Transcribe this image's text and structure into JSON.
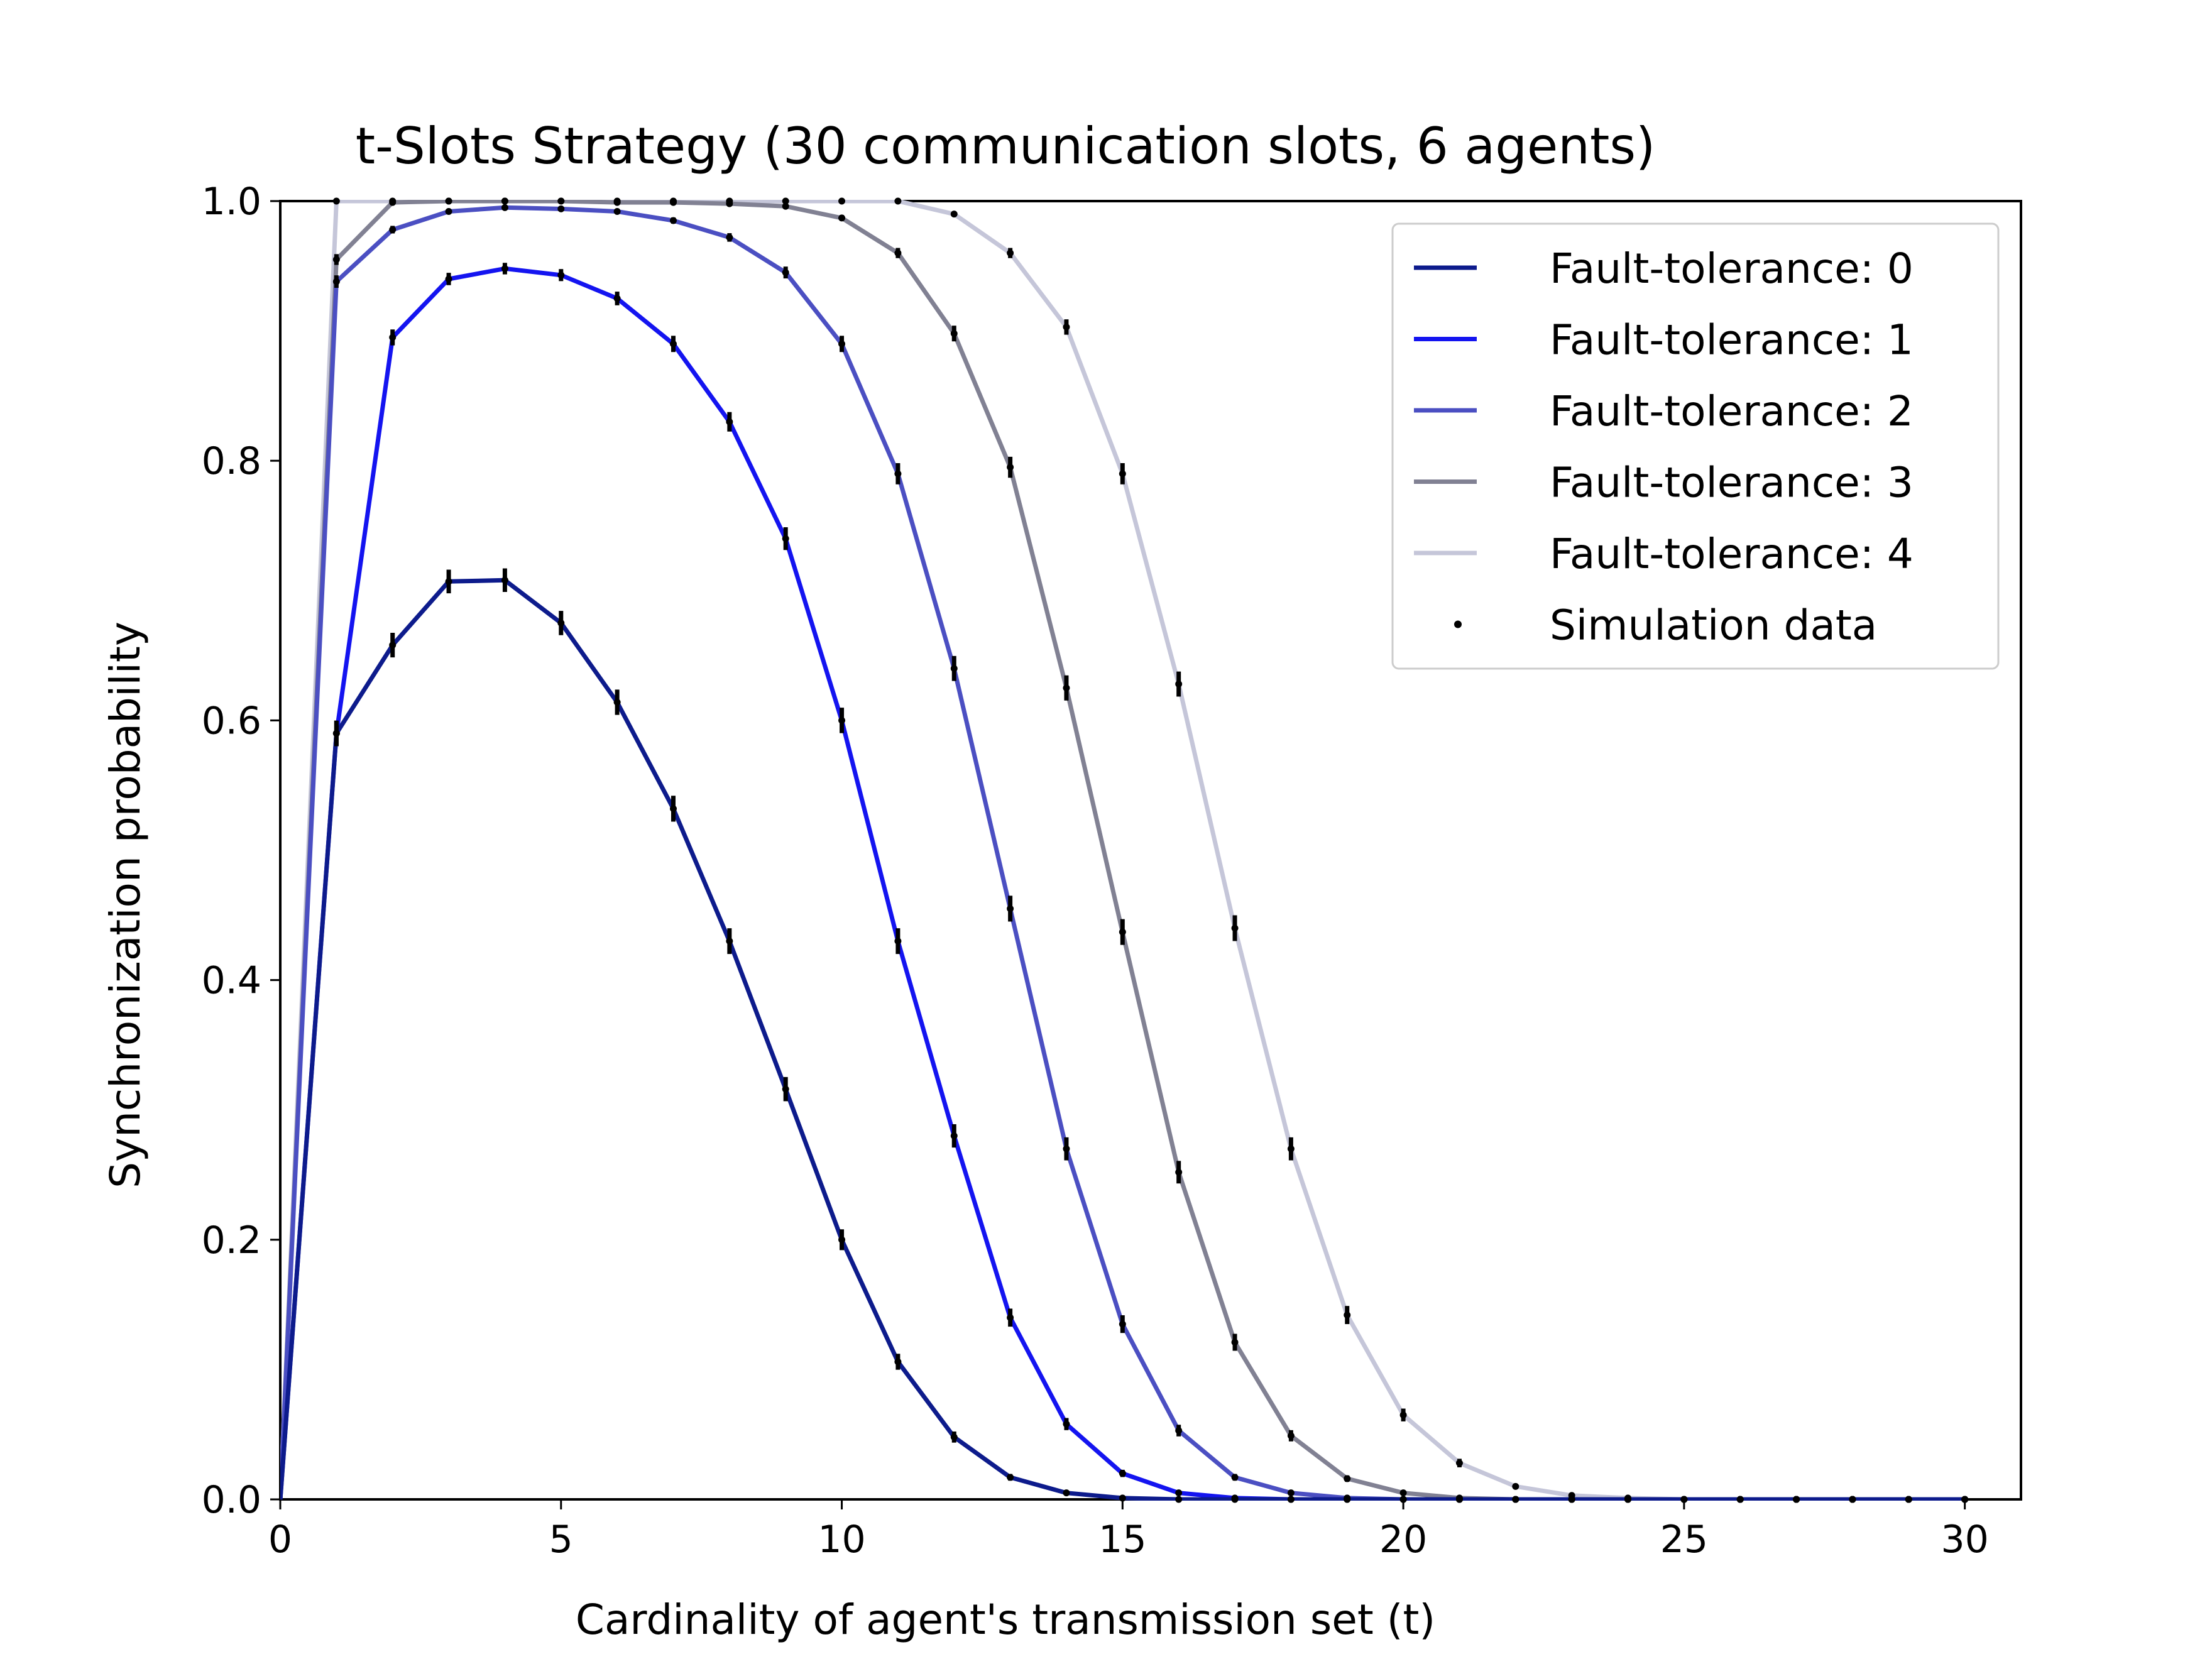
{
  "chart_data": {
    "type": "line",
    "title": "t-Slots Strategy (30 communication slots, 6 agents)",
    "xlabel": "Cardinality of agent's transmission set (t)",
    "ylabel": "Synchronization probability",
    "xlim": [
      0,
      31
    ],
    "ylim": [
      0.0,
      1.0
    ],
    "xticks": [
      0,
      5,
      10,
      15,
      20,
      25,
      30
    ],
    "yticks": [
      0.0,
      0.2,
      0.4,
      0.6,
      0.8,
      1.0
    ],
    "xtick_labels": [
      "0",
      "5",
      "10",
      "15",
      "20",
      "25",
      "30"
    ],
    "ytick_labels": [
      "0.0",
      "0.2",
      "0.4",
      "0.6",
      "0.8",
      "1.0"
    ],
    "grid": false,
    "legend_position": "top-right",
    "x": [
      0,
      1,
      2,
      3,
      4,
      5,
      6,
      7,
      8,
      9,
      10,
      11,
      12,
      13,
      14,
      15,
      16,
      17,
      18,
      19,
      20,
      21,
      22,
      23,
      24,
      25,
      26,
      27,
      28,
      29,
      30
    ],
    "series": [
      {
        "name": "Fault-tolerance: 0",
        "color": "#0d1b8c",
        "values": [
          0,
          0.59,
          0.658,
          0.707,
          0.708,
          0.675,
          0.614,
          0.532,
          0.43,
          0.316,
          0.2,
          0.106,
          0.048,
          0.017,
          0.005,
          0.001,
          0,
          0,
          0,
          0,
          0,
          0,
          0,
          0,
          0,
          0,
          0,
          0,
          0,
          0,
          0
        ]
      },
      {
        "name": "Fault-tolerance: 1",
        "color": "#1414f0",
        "values": [
          0,
          0.59,
          0.895,
          0.94,
          0.948,
          0.943,
          0.925,
          0.89,
          0.83,
          0.74,
          0.6,
          0.43,
          0.28,
          0.14,
          0.058,
          0.02,
          0.005,
          0.001,
          0,
          0,
          0,
          0,
          0,
          0,
          0,
          0,
          0,
          0,
          0,
          0,
          0
        ]
      },
      {
        "name": "Fault-tolerance: 2",
        "color": "#4b4fc2",
        "values": [
          0,
          0.938,
          0.978,
          0.992,
          0.995,
          0.994,
          0.992,
          0.985,
          0.972,
          0.945,
          0.89,
          0.79,
          0.64,
          0.455,
          0.27,
          0.135,
          0.053,
          0.017,
          0.005,
          0.001,
          0,
          0,
          0,
          0,
          0,
          0,
          0,
          0,
          0,
          0,
          0
        ]
      },
      {
        "name": "Fault-tolerance: 3",
        "color": "#818193",
        "values": [
          0,
          0.955,
          0.999,
          1.0,
          1.0,
          1.0,
          0.999,
          0.999,
          0.998,
          0.996,
          0.987,
          0.96,
          0.898,
          0.795,
          0.625,
          0.437,
          0.252,
          0.121,
          0.049,
          0.016,
          0.005,
          0.001,
          0,
          0,
          0,
          0,
          0,
          0,
          0,
          0,
          0
        ]
      },
      {
        "name": "Fault-tolerance: 4",
        "color": "#c5c6d9",
        "values": [
          0,
          1.0,
          1.0,
          1.0,
          1.0,
          1.0,
          1.0,
          1.0,
          1.0,
          1.0,
          1.0,
          1.0,
          0.99,
          0.96,
          0.903,
          0.79,
          0.628,
          0.44,
          0.27,
          0.142,
          0.065,
          0.028,
          0.01,
          0.003,
          0.001,
          0,
          0,
          0,
          0,
          0,
          0
        ]
      }
    ],
    "simulation_marker": {
      "name": "Simulation data",
      "color": "#000000"
    }
  }
}
